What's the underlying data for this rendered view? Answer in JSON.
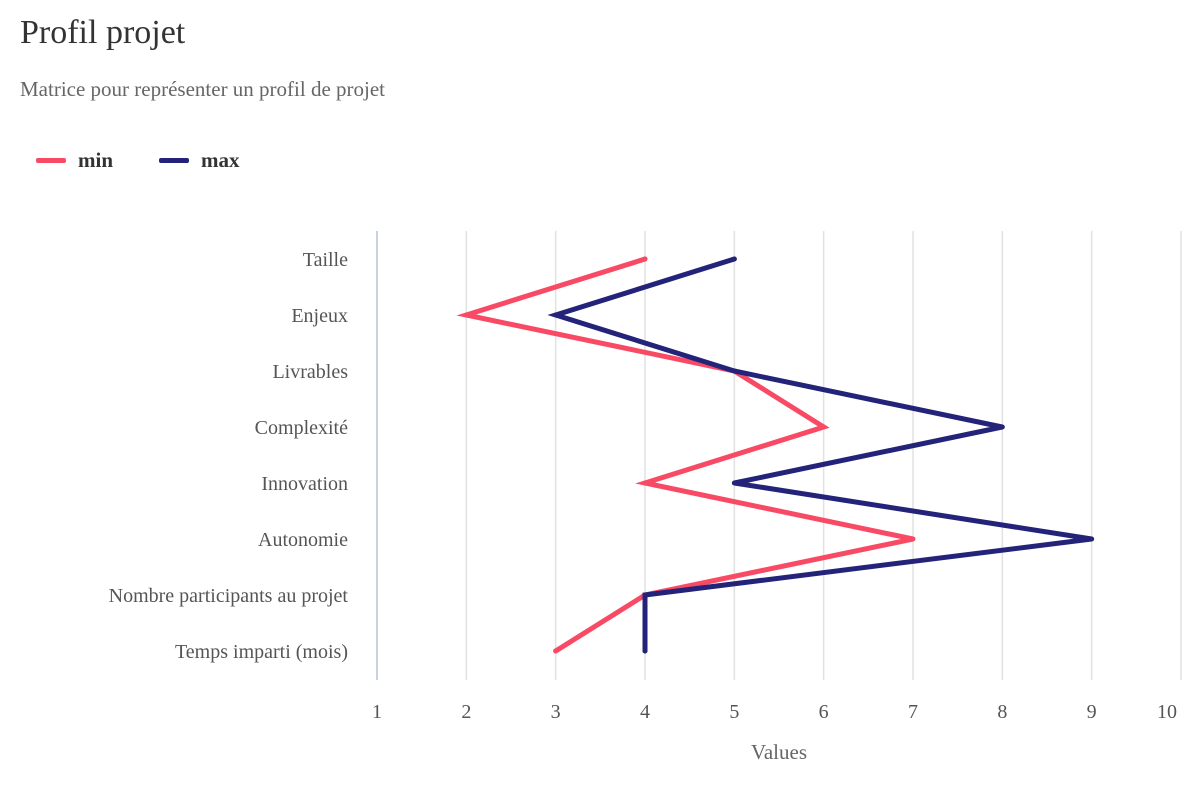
{
  "chart_data": {
    "type": "line",
    "orientation": "horizontal",
    "title": "Profil projet",
    "subtitle": "Matrice pour représenter un profil de projet",
    "categories": [
      "Taille",
      "Enjeux",
      "Livrables",
      "Complexité",
      "Innovation",
      "Autonomie",
      "Nombre participants au projet",
      "Temps imparti (mois)"
    ],
    "series": [
      {
        "name": "min",
        "color": "#f94a65",
        "values": [
          4,
          2,
          5,
          6,
          4,
          7,
          4,
          3
        ]
      },
      {
        "name": "max",
        "color": "#23237a",
        "values": [
          5,
          3,
          5,
          8,
          5,
          9,
          4,
          4
        ]
      }
    ],
    "xlabel": "Values",
    "xlim": [
      1,
      10
    ],
    "xticks": [
      1,
      2,
      3,
      4,
      5,
      6,
      7,
      8,
      9,
      10
    ],
    "grid": true,
    "legend_position": "top-left"
  }
}
